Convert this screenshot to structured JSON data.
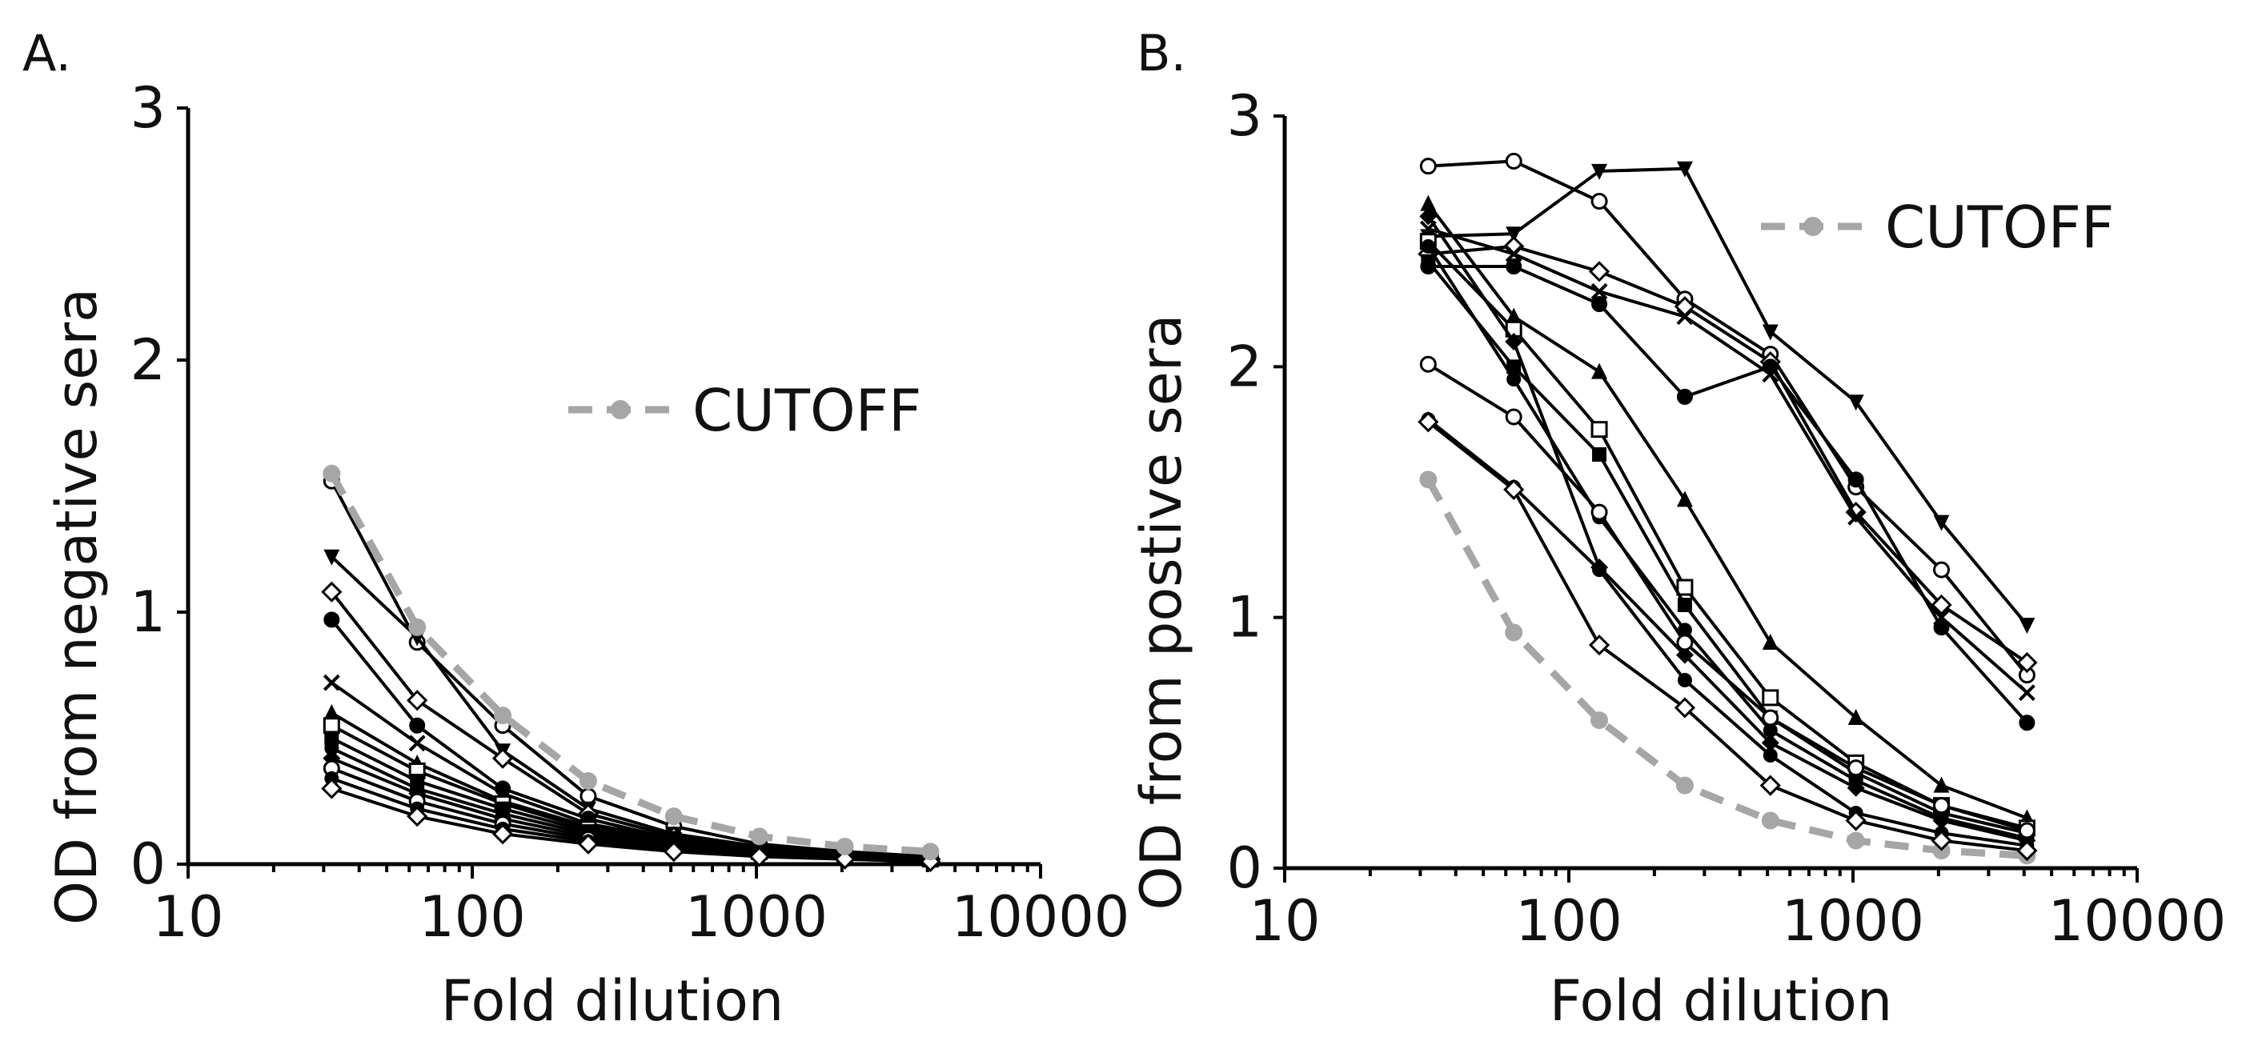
{
  "chart_data": [
    {
      "type": "line",
      "panel_label": "A.",
      "xlabel": "Fold dilution",
      "ylabel": "OD from negative sera",
      "x_scale": "log",
      "xlim": [
        10,
        10000
      ],
      "ylim": [
        0,
        3
      ],
      "x_ticks": [
        "10",
        "100",
        "1000",
        "10000"
      ],
      "y_ticks": [
        "0",
        "1",
        "2",
        "3"
      ],
      "legend_position": "upper-right",
      "x": [
        32,
        64,
        128,
        256,
        512,
        1024,
        2048,
        4096
      ],
      "cutoff": {
        "name": "CUTOFF",
        "color": "#a6a6a6",
        "values": [
          1.55,
          0.94,
          0.59,
          0.33,
          0.19,
          0.11,
          0.07,
          0.05
        ]
      },
      "series": [
        {
          "values": [
            1.52,
            0.88,
            0.55,
            0.27,
            0.15,
            0.08,
            0.05,
            0.03
          ]
        },
        {
          "values": [
            1.22,
            0.9,
            0.45,
            0.22,
            0.12,
            0.07,
            0.04,
            0.03
          ]
        },
        {
          "values": [
            1.08,
            0.65,
            0.42,
            0.2,
            0.11,
            0.06,
            0.04,
            0.02
          ]
        },
        {
          "values": [
            0.97,
            0.55,
            0.3,
            0.18,
            0.1,
            0.06,
            0.04,
            0.02
          ]
        },
        {
          "values": [
            0.72,
            0.48,
            0.28,
            0.16,
            0.1,
            0.05,
            0.03,
            0.02
          ]
        },
        {
          "values": [
            0.6,
            0.4,
            0.25,
            0.15,
            0.09,
            0.05,
            0.03,
            0.02
          ]
        },
        {
          "values": [
            0.55,
            0.37,
            0.24,
            0.14,
            0.08,
            0.05,
            0.03,
            0.02
          ]
        },
        {
          "values": [
            0.5,
            0.33,
            0.22,
            0.13,
            0.08,
            0.05,
            0.03,
            0.02
          ]
        },
        {
          "values": [
            0.46,
            0.3,
            0.2,
            0.12,
            0.07,
            0.04,
            0.03,
            0.02
          ]
        },
        {
          "values": [
            0.42,
            0.28,
            0.18,
            0.11,
            0.07,
            0.04,
            0.03,
            0.02
          ]
        },
        {
          "values": [
            0.38,
            0.25,
            0.16,
            0.1,
            0.06,
            0.04,
            0.02,
            0.02
          ]
        },
        {
          "values": [
            0.34,
            0.22,
            0.14,
            0.09,
            0.06,
            0.04,
            0.02,
            0.01
          ]
        },
        {
          "values": [
            0.3,
            0.19,
            0.12,
            0.08,
            0.05,
            0.03,
            0.02,
            0.01
          ]
        }
      ]
    },
    {
      "type": "line",
      "panel_label": "B.",
      "xlabel": "Fold dilution",
      "ylabel": "OD from  postive sera",
      "x_scale": "log",
      "xlim": [
        10,
        10000
      ],
      "ylim": [
        0,
        3
      ],
      "x_ticks": [
        "10",
        "100",
        "1000",
        "10000"
      ],
      "y_ticks": [
        "0",
        "1",
        "2",
        "3"
      ],
      "legend_position": "top-right",
      "x": [
        32,
        64,
        128,
        256,
        512,
        1024,
        2048,
        4096
      ],
      "cutoff": {
        "name": "CUTOFF",
        "color": "#a6a6a6",
        "values": [
          1.55,
          0.94,
          0.59,
          0.33,
          0.19,
          0.11,
          0.07,
          0.05
        ]
      },
      "series": [
        {
          "values": [
            2.8,
            2.82,
            2.66,
            2.27,
            2.05,
            1.52,
            1.19,
            0.77
          ]
        },
        {
          "values": [
            2.52,
            2.53,
            2.78,
            2.79,
            2.14,
            1.86,
            1.38,
            0.97
          ]
        },
        {
          "values": [
            2.45,
            2.48,
            2.38,
            2.24,
            2.02,
            1.42,
            1.05,
            0.82
          ]
        },
        {
          "values": [
            2.4,
            2.4,
            2.25,
            1.88,
            2.0,
            1.55,
            0.96,
            0.58
          ]
        },
        {
          "values": [
            2.55,
            2.45,
            2.3,
            2.2,
            1.97,
            1.4,
            1.0,
            0.7
          ]
        },
        {
          "values": [
            2.65,
            2.2,
            1.98,
            1.47,
            0.9,
            0.6,
            0.33,
            0.2
          ]
        },
        {
          "values": [
            2.5,
            2.15,
            1.75,
            1.12,
            0.68,
            0.42,
            0.25,
            0.16
          ]
        },
        {
          "values": [
            2.42,
            2.0,
            1.65,
            1.05,
            0.6,
            0.38,
            0.22,
            0.14
          ]
        },
        {
          "values": [
            2.48,
            1.95,
            1.4,
            0.95,
            0.55,
            0.35,
            0.2,
            0.12
          ]
        },
        {
          "values": [
            2.6,
            2.1,
            1.2,
            0.85,
            0.5,
            0.32,
            0.19,
            0.11
          ]
        },
        {
          "values": [
            2.01,
            1.8,
            1.42,
            0.9,
            0.6,
            0.4,
            0.25,
            0.15
          ]
        },
        {
          "values": [
            1.79,
            1.52,
            1.19,
            0.75,
            0.45,
            0.22,
            0.14,
            0.09
          ]
        },
        {
          "values": [
            1.78,
            1.51,
            0.89,
            0.64,
            0.33,
            0.19,
            0.11,
            0.07
          ]
        }
      ]
    }
  ]
}
